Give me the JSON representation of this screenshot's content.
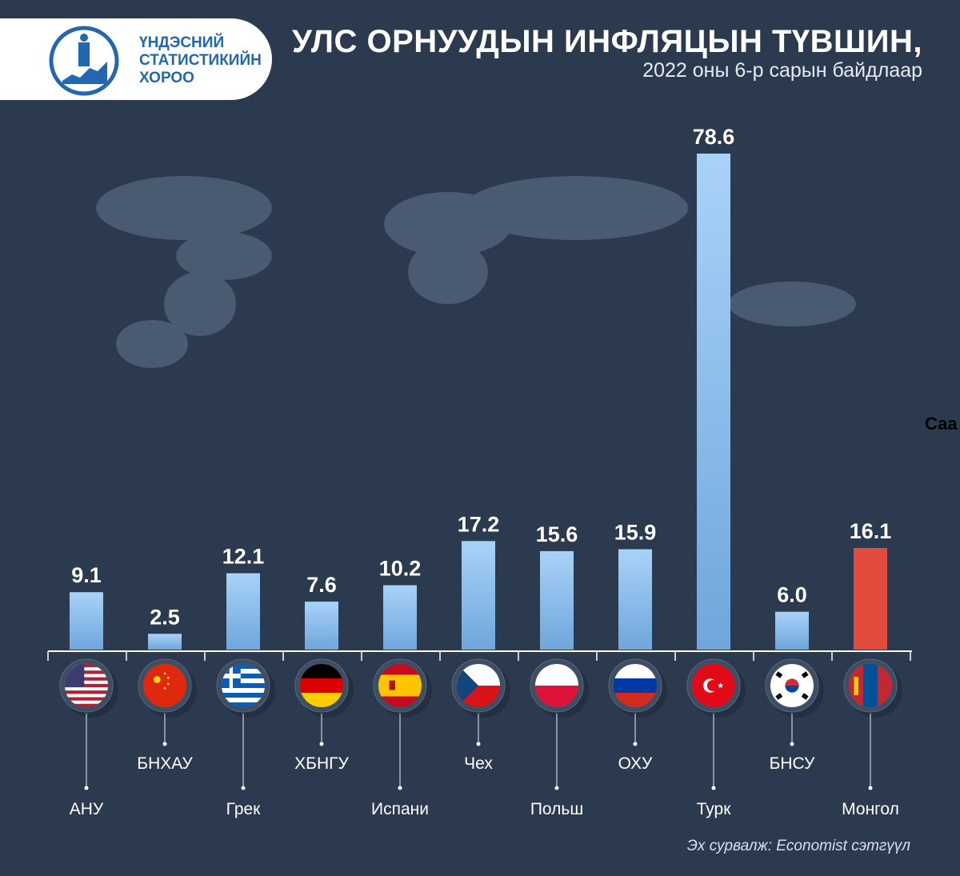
{
  "header": {
    "org_lines": [
      "ҮНДЭСНИЙ",
      "СТАТИСТИКИЙН",
      "ХОРОО"
    ],
    "title": "УЛС ОРНУУДЫН ИНФЛЯЦЫН ТҮВШИН,",
    "subtitle": "2022 оны 6-р сарын байдлаар"
  },
  "side_note": "Саа",
  "source": "Эх сурвалж: Economist сэтгүүл",
  "colors": {
    "background": "#2b3a4e",
    "bar": "#8fc0ee",
    "highlight_bar": "#e24b3b",
    "logo_blue": "#2267b0"
  },
  "flags": [
    "us-flag-icon",
    "china-flag-icon",
    "greece-flag-icon",
    "germany-flag-icon",
    "spain-flag-icon",
    "czech-flag-icon",
    "poland-flag-icon",
    "russia-flag-icon",
    "turkey-flag-icon",
    "korea-flag-icon",
    "mongolia-flag-icon"
  ],
  "chart_data": {
    "type": "bar",
    "categories": [
      "АНУ",
      "БНХАУ",
      "Грек",
      "ХБНГУ",
      "Испани",
      "Чех",
      "Польш",
      "ОХУ",
      "Турк",
      "БНСУ",
      "Монгол"
    ],
    "values": [
      9.1,
      2.5,
      12.1,
      7.6,
      10.2,
      17.2,
      15.6,
      15.9,
      78.6,
      6.0,
      16.1
    ],
    "value_labels": [
      "9.1",
      "2.5",
      "12.1",
      "7.6",
      "10.2",
      "17.2",
      "15.6",
      "15.9",
      "78.6",
      "6.0",
      "16.1"
    ],
    "highlight": "Монгол",
    "ylim": [
      0,
      78.6
    ],
    "grid": false,
    "legend": "none"
  }
}
